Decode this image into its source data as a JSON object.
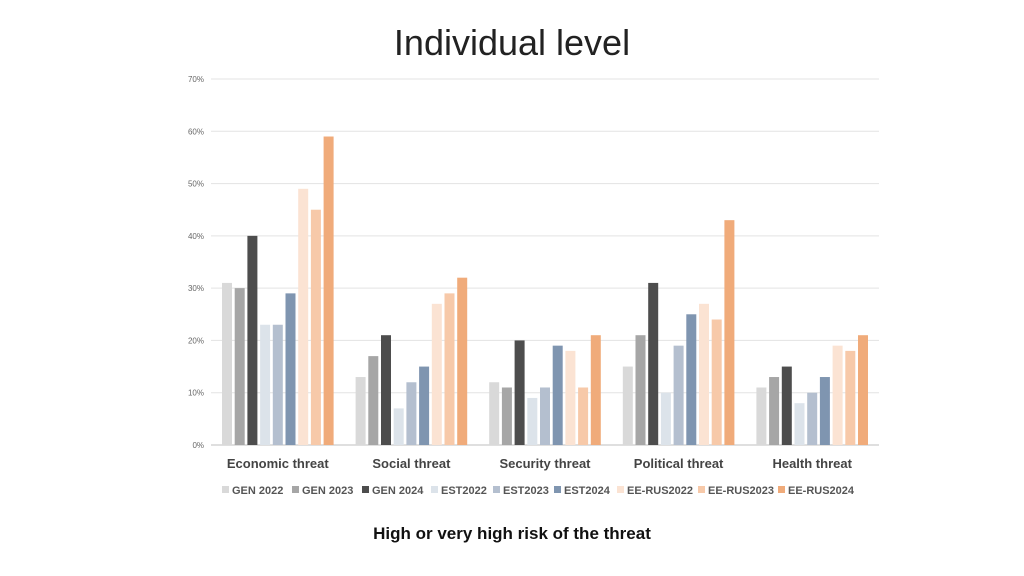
{
  "title": "Individual level",
  "footer": "High or very high risk of the threat",
  "chart_data": {
    "type": "bar",
    "title": "Individual level",
    "xlabel": "",
    "ylabel": "",
    "ylim": [
      0,
      70
    ],
    "y_ticks": [
      "0%",
      "10%",
      "20%",
      "30%",
      "40%",
      "50%",
      "60%",
      "70%"
    ],
    "grid": true,
    "legend_position": "bottom",
    "categories": [
      "Economic threat",
      "Social threat",
      "Security threat",
      "Political threat",
      "Health threat"
    ],
    "series": [
      {
        "name": "GEN 2022",
        "color": "#d9d9d9",
        "values": [
          31,
          13,
          12,
          15,
          11
        ]
      },
      {
        "name": "GEN 2023",
        "color": "#a6a6a6",
        "values": [
          30,
          17,
          11,
          21,
          13
        ]
      },
      {
        "name": "GEN 2024",
        "color": "#4d4d4d",
        "values": [
          40,
          21,
          20,
          31,
          15
        ]
      },
      {
        "name": "EST2022",
        "color": "#dce3ea",
        "values": [
          23,
          7,
          9,
          10,
          8
        ]
      },
      {
        "name": "EST2023",
        "color": "#b4bfcf",
        "values": [
          23,
          12,
          11,
          19,
          10
        ]
      },
      {
        "name": "EST2024",
        "color": "#7f95b0",
        "values": [
          29,
          15,
          19,
          25,
          13
        ]
      },
      {
        "name": "EE-RUS2022",
        "color": "#fbe3d3",
        "values": [
          49,
          27,
          18,
          27,
          19
        ]
      },
      {
        "name": "EE-RUS2023",
        "color": "#f7c9a9",
        "values": [
          45,
          29,
          11,
          24,
          18
        ]
      },
      {
        "name": "EE-RUS2024",
        "color": "#f0ab7a",
        "values": [
          59,
          32,
          21,
          43,
          21
        ]
      }
    ]
  }
}
